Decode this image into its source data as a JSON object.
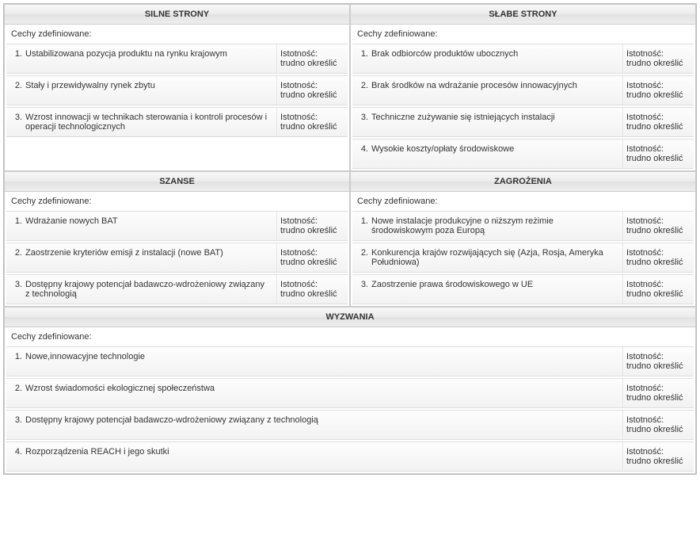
{
  "labels": {
    "defined": "Cechy zdefiniowane:",
    "relevance_label": "Istotność:",
    "relevance_value": "trudno określić"
  },
  "sections": {
    "strengths": {
      "title": "SILNE STRONY",
      "items": [
        {
          "n": "1.",
          "text": "Ustabilizowana pozycja produktu na rynku krajowym"
        },
        {
          "n": "2.",
          "text": "Stały i przewidywalny rynek zbytu"
        },
        {
          "n": "3.",
          "text": "Wzrost innowacji w technikach sterowania i kontroli procesów i operacji technologicznych"
        }
      ],
      "pad_to": 4
    },
    "weaknesses": {
      "title": "SŁABE STRONY",
      "items": [
        {
          "n": "1.",
          "text": "Brak odbiorców produktów ubocznych"
        },
        {
          "n": "2.",
          "text": "Brak środków na wdrażanie procesów innowacyjnych"
        },
        {
          "n": "3.",
          "text": "Techniczne zużywanie się istniejących instalacji"
        },
        {
          "n": "4.",
          "text": "Wysokie koszty/opłaty środowiskowe"
        }
      ]
    },
    "opportunities": {
      "title": "SZANSE",
      "items": [
        {
          "n": "1.",
          "text": "Wdrażanie nowych BAT"
        },
        {
          "n": "2.",
          "text": "Zaostrzenie kryteriów emisji z instalacji (nowe BAT)"
        },
        {
          "n": "3.",
          "text": "Dostępny krajowy potencjał badawczo-wdrożeniowy związany z technologią"
        }
      ]
    },
    "threats": {
      "title": "ZAGROŻENIA",
      "items": [
        {
          "n": "1.",
          "text": "Nowe instalacje produkcyjne o niższym reżimie środowiskowym poza Europą"
        },
        {
          "n": "2.",
          "text": "Konkurencja krajów rozwijających się (Azja, Rosja, Ameryka Południowa)"
        },
        {
          "n": "3.",
          "text": "Zaostrzenie prawa środowiskowego w UE"
        }
      ]
    },
    "challenges": {
      "title": "WYZWANIA",
      "items": [
        {
          "n": "1.",
          "text": "Nowe,innowacyjne technologie"
        },
        {
          "n": "2.",
          "text": "Wzrost świadomości ekologicznej społeczeństwa"
        },
        {
          "n": "3.",
          "text": "Dostępny krajowy potencjał badawczo-wdrożeniowy związany z technologią"
        },
        {
          "n": "4.",
          "text": "Rozporządzenia REACH i jego skutki"
        }
      ]
    }
  }
}
